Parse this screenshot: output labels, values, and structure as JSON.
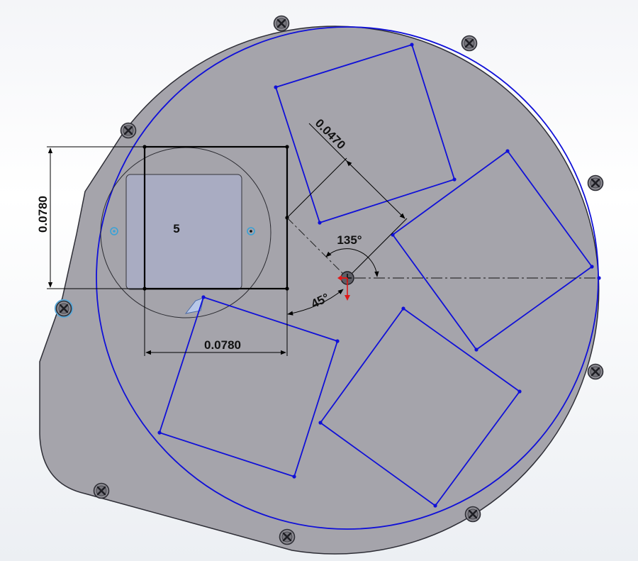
{
  "colors": {
    "plate": "#a5a4ab",
    "plate_edge": "#2e2e36",
    "sketch_blue": "#1010d8",
    "dimension": "#000000",
    "pocket_fill": "#a9acc2",
    "origin_red": "#e01818"
  },
  "dimensions": {
    "square_height": "0.0780",
    "square_width": "0.0780",
    "offset_distance": "0.0470",
    "angle_upper": "135°",
    "angle_lower": "45°"
  },
  "pocket_label": "5",
  "icons": {
    "screw": "phillips-screw-icon",
    "origin": "origin-triad-icon"
  }
}
